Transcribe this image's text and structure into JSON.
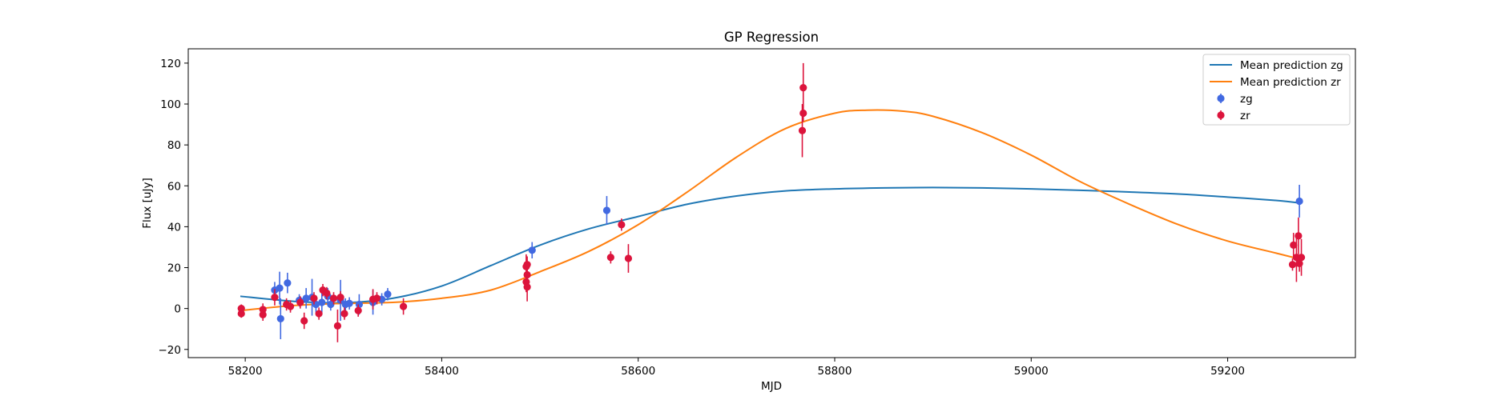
{
  "chart_data": {
    "type": "scatter",
    "title": "GP Regression",
    "xlabel": "MJD",
    "ylabel": "Flux [uJy]",
    "xlim": [
      58142,
      59330
    ],
    "ylim": [
      -24,
      127
    ],
    "x_ticks": [
      58200,
      58400,
      58600,
      58800,
      59000,
      59200
    ],
    "y_ticks": [
      -20,
      0,
      20,
      40,
      60,
      80,
      100,
      120
    ],
    "grid": false,
    "legend_position": "top-right",
    "lines": [
      {
        "name": "Mean prediction zg",
        "color": "#1f77b4",
        "x": [
          58195,
          58250,
          58300,
          58350,
          58400,
          58450,
          58500,
          58550,
          58600,
          58650,
          58700,
          58750,
          58800,
          58850,
          58900,
          58950,
          59000,
          59050,
          59100,
          59150,
          59200,
          59250,
          59275
        ],
        "y": [
          6,
          3.5,
          2.8,
          5,
          11,
          21,
          31,
          39,
          45,
          51,
          55,
          57.5,
          58.5,
          59,
          59.2,
          59,
          58.5,
          57.8,
          57,
          56,
          54.5,
          52.8,
          51.5
        ]
      },
      {
        "name": "Mean prediction zr",
        "color": "#ff7f0e",
        "x": [
          58195,
          58250,
          58300,
          58350,
          58400,
          58450,
          58500,
          58550,
          58600,
          58650,
          58700,
          58750,
          58800,
          58833,
          58870,
          58900,
          58950,
          59000,
          59050,
          59100,
          59150,
          59200,
          59250,
          59275
        ],
        "y": [
          -1,
          1.5,
          2.5,
          3,
          5,
          9,
          18,
          28,
          41,
          57,
          74,
          88,
          95.5,
          97,
          96.5,
          94,
          86,
          75,
          62,
          51,
          41,
          33,
          27,
          24
        ]
      }
    ],
    "series": [
      {
        "name": "zg",
        "color": "#4169e1",
        "points": [
          {
            "x": 58230,
            "y": 9,
            "err": 4
          },
          {
            "x": 58235,
            "y": 10,
            "err": 8
          },
          {
            "x": 58236,
            "y": -5,
            "err": 10
          },
          {
            "x": 58243,
            "y": 12.5,
            "err": 5
          },
          {
            "x": 58255,
            "y": 4,
            "err": 3
          },
          {
            "x": 58262,
            "y": 5,
            "err": 5
          },
          {
            "x": 58268,
            "y": 5.5,
            "err": 9
          },
          {
            "x": 58272,
            "y": 2,
            "err": 4
          },
          {
            "x": 58278,
            "y": 3,
            "err": 5
          },
          {
            "x": 58284,
            "y": 6,
            "err": 4
          },
          {
            "x": 58287,
            "y": 2,
            "err": 3
          },
          {
            "x": 58297,
            "y": 4,
            "err": 10
          },
          {
            "x": 58302,
            "y": 2,
            "err": 3
          },
          {
            "x": 58306,
            "y": 2.5,
            "err": 3
          },
          {
            "x": 58316,
            "y": 2,
            "err": 5
          },
          {
            "x": 58330,
            "y": 3,
            "err": 6
          },
          {
            "x": 58339,
            "y": 4.5,
            "err": 3
          },
          {
            "x": 58345,
            "y": 7,
            "err": 3
          },
          {
            "x": 58492,
            "y": 28.5,
            "err": 4
          },
          {
            "x": 58568,
            "y": 48,
            "err": 7
          },
          {
            "x": 59273,
            "y": 52.5,
            "err": 8
          }
        ]
      },
      {
        "name": "zr",
        "color": "#dc143c",
        "points": [
          {
            "x": 58196,
            "y": 0,
            "err": 2
          },
          {
            "x": 58196,
            "y": -2.5,
            "err": 2
          },
          {
            "x": 58218,
            "y": -0.5,
            "err": 3
          },
          {
            "x": 58218,
            "y": -3,
            "err": 3
          },
          {
            "x": 58230,
            "y": 5.5,
            "err": 4
          },
          {
            "x": 58242,
            "y": 2,
            "err": 3
          },
          {
            "x": 58246,
            "y": 1,
            "err": 3
          },
          {
            "x": 58256,
            "y": 3,
            "err": 3
          },
          {
            "x": 58260,
            "y": -6,
            "err": 4
          },
          {
            "x": 58270,
            "y": 5,
            "err": 3
          },
          {
            "x": 58275,
            "y": -2.5,
            "err": 3
          },
          {
            "x": 58279,
            "y": 9,
            "err": 3
          },
          {
            "x": 58283,
            "y": 7.5,
            "err": 3
          },
          {
            "x": 58290,
            "y": 5,
            "err": 3
          },
          {
            "x": 58294,
            "y": -8.5,
            "err": 8
          },
          {
            "x": 58297,
            "y": 5.5,
            "err": 3
          },
          {
            "x": 58301,
            "y": -2.5,
            "err": 3
          },
          {
            "x": 58315,
            "y": -1,
            "err": 3
          },
          {
            "x": 58330,
            "y": 4.5,
            "err": 5
          },
          {
            "x": 58334,
            "y": 5,
            "err": 3
          },
          {
            "x": 58361,
            "y": 1,
            "err": 4
          },
          {
            "x": 58486,
            "y": 20.5,
            "err": 6
          },
          {
            "x": 58487,
            "y": 21.5,
            "err": 4
          },
          {
            "x": 58487,
            "y": 16.5,
            "err": 4
          },
          {
            "x": 58486,
            "y": 13,
            "err": 5
          },
          {
            "x": 58487,
            "y": 10.5,
            "err": 7
          },
          {
            "x": 58572,
            "y": 25,
            "err": 3
          },
          {
            "x": 58583,
            "y": 41,
            "err": 3
          },
          {
            "x": 58590,
            "y": 24.5,
            "err": 7
          },
          {
            "x": 58767,
            "y": 87,
            "err": 13
          },
          {
            "x": 58768,
            "y": 95.5,
            "err": 4
          },
          {
            "x": 58768,
            "y": 108,
            "err": 12
          },
          {
            "x": 59267,
            "y": 31,
            "err": 6
          },
          {
            "x": 59266,
            "y": 21.5,
            "err": 3
          },
          {
            "x": 59270,
            "y": 25,
            "err": 12
          },
          {
            "x": 59272,
            "y": 35.5,
            "err": 9
          },
          {
            "x": 59275,
            "y": 25,
            "err": 9
          },
          {
            "x": 59273,
            "y": 22,
            "err": 4
          }
        ]
      }
    ]
  }
}
